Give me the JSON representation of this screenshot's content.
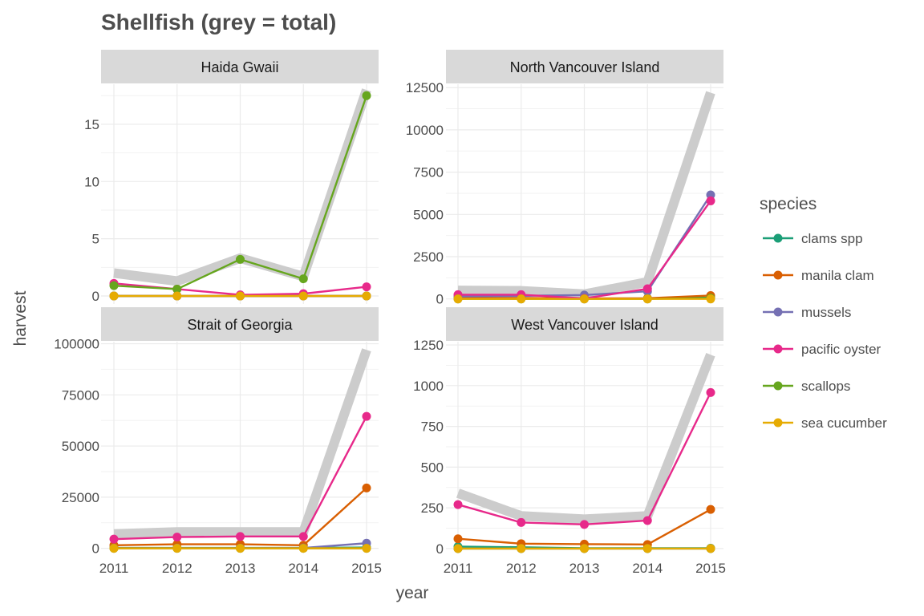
{
  "chart_data": {
    "type": "line",
    "title": "Shellfish (grey = total)",
    "xlabel": "year",
    "ylabel": "harvest",
    "total_color": "#cccccc",
    "legend": {
      "title": "species",
      "placement": "right"
    },
    "series_colors": {
      "clams spp": "#1b9e77",
      "manila clam": "#d95f02",
      "mussels": "#7570b3",
      "pacific oyster": "#e7298a",
      "scallops": "#66a61e",
      "sea cucumber": "#e6ab02"
    },
    "x": [
      2011,
      2012,
      2013,
      2014,
      2015
    ],
    "x_ticks": [
      "2011",
      "2012",
      "2013",
      "2014",
      "2015"
    ],
    "panels": [
      {
        "name": "Haida Gwaii",
        "ylim": [
          -0.7,
          18.5
        ],
        "y_ticks": [
          0,
          5,
          10,
          15
        ],
        "total": [
          2.0,
          1.3,
          3.3,
          1.7,
          18.0
        ],
        "series": [
          {
            "name": "clams spp",
            "values": [
              0,
              0,
              0,
              0,
              0
            ]
          },
          {
            "name": "manila clam",
            "values": [
              0,
              0,
              0,
              0,
              0
            ]
          },
          {
            "name": "mussels",
            "values": [
              0,
              0,
              0,
              0,
              0
            ]
          },
          {
            "name": "pacific oyster",
            "values": [
              1.1,
              0.6,
              0.1,
              0.2,
              0.8
            ]
          },
          {
            "name": "scallops",
            "values": [
              0.9,
              0.6,
              3.2,
              1.5,
              17.5
            ]
          },
          {
            "name": "sea cucumber",
            "values": [
              0,
              0,
              0,
              0,
              0
            ]
          }
        ]
      },
      {
        "name": "North Vancouver Island",
        "ylim": [
          -300,
          12700
        ],
        "y_ticks": [
          0,
          2500,
          5000,
          7500,
          10000,
          12500
        ],
        "total": [
          500,
          480,
          280,
          1000,
          12200
        ],
        "series": [
          {
            "name": "clams spp",
            "values": [
              40,
              40,
              20,
              30,
              80
            ]
          },
          {
            "name": "manila clam",
            "values": [
              60,
              60,
              30,
              40,
              200
            ]
          },
          {
            "name": "mussels",
            "values": [
              150,
              180,
              230,
              450,
              6150
            ]
          },
          {
            "name": "pacific oyster",
            "values": [
              250,
              250,
              30,
              600,
              5800
            ]
          },
          {
            "name": "scallops",
            "values": [
              0,
              0,
              0,
              0,
              50
            ]
          },
          {
            "name": "sea cucumber",
            "values": [
              0,
              0,
              0,
              0,
              0
            ]
          }
        ]
      },
      {
        "name": "Strait of Georgia",
        "ylim": [
          -2500,
          101000
        ],
        "y_ticks": [
          0,
          25000,
          50000,
          75000,
          100000
        ],
        "total": [
          7000,
          8000,
          8000,
          8000,
          97000
        ],
        "series": [
          {
            "name": "clams spp",
            "values": [
              200,
              200,
              200,
              200,
              400
            ]
          },
          {
            "name": "manila clam",
            "values": [
              1500,
              2000,
              2000,
              1500,
              29500
            ]
          },
          {
            "name": "mussels",
            "values": [
              100,
              100,
              100,
              200,
              2500
            ]
          },
          {
            "name": "pacific oyster",
            "values": [
              4500,
              5500,
              5800,
              5800,
              64500
            ]
          },
          {
            "name": "scallops",
            "values": [
              0,
              0,
              0,
              0,
              0
            ]
          },
          {
            "name": "sea cucumber",
            "values": [
              0,
              0,
              0,
              0,
              0
            ]
          }
        ]
      },
      {
        "name": "West Vancouver Island",
        "ylim": [
          -30,
          1270
        ],
        "y_ticks": [
          0,
          250,
          500,
          750,
          1000,
          1250
        ],
        "total": [
          340,
          200,
          180,
          200,
          1190
        ],
        "series": [
          {
            "name": "clams spp",
            "values": [
              12,
              8,
              2,
              2,
              2
            ]
          },
          {
            "name": "manila clam",
            "values": [
              60,
              30,
              27,
              25,
              240
            ]
          },
          {
            "name": "mussels",
            "values": [
              0,
              0,
              0,
              0,
              0
            ]
          },
          {
            "name": "pacific oyster",
            "values": [
              270,
              160,
              148,
              172,
              958
            ]
          },
          {
            "name": "scallops",
            "values": [
              0,
              0,
              0,
              0,
              0
            ]
          },
          {
            "name": "sea cucumber",
            "values": [
              0,
              0,
              0,
              0,
              0
            ]
          }
        ]
      }
    ]
  }
}
